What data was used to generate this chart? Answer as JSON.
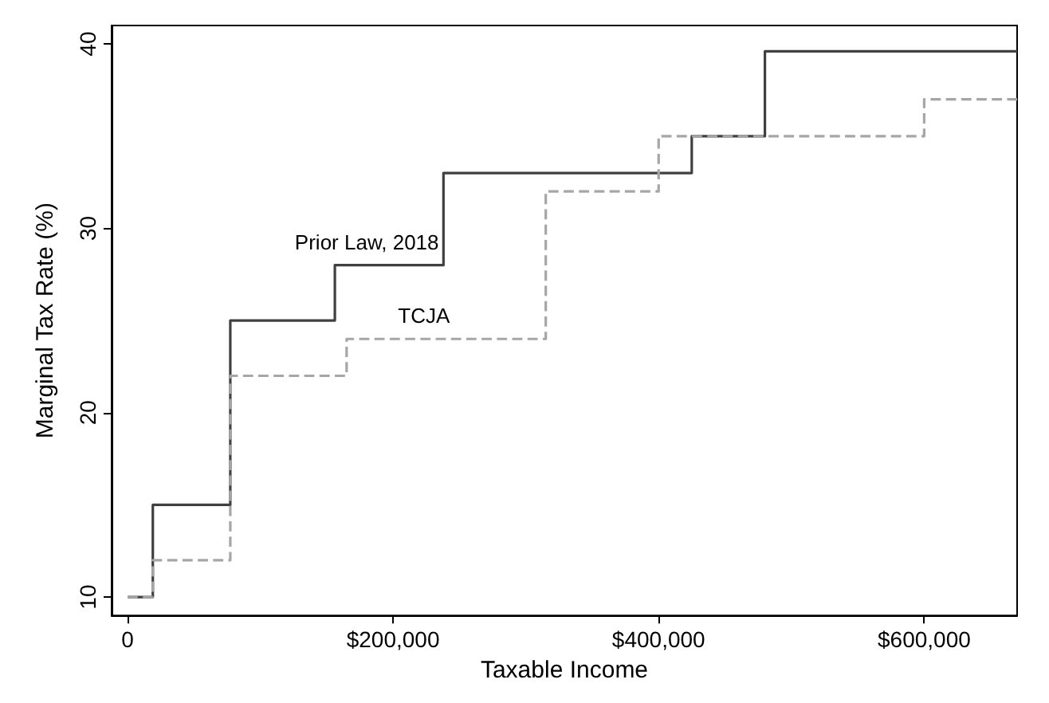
{
  "chart_data": {
    "type": "step",
    "xlabel": "Taxable Income",
    "ylabel": "Marginal Tax Rate (%)",
    "series": [
      {
        "name": "Prior Law, 2018",
        "color": "#404040",
        "line_style": "solid",
        "x": [
          0,
          19050,
          77400,
          156150,
          237950,
          424950,
          480050,
          670000
        ],
        "values": [
          10,
          15,
          25,
          28,
          33,
          35,
          39.6,
          39.6
        ]
      },
      {
        "name": "TCJA",
        "color": "#a6a6a6",
        "line_style": "dashed",
        "x": [
          0,
          19050,
          77400,
          165000,
          315000,
          400000,
          600000,
          670000
        ],
        "values": [
          10,
          12,
          22,
          24,
          32,
          35,
          37,
          37
        ]
      }
    ],
    "xlim": [
      -12000,
      670000
    ],
    "xticks": [
      0,
      {
        "value": 200000,
        "label": "$200,000"
      },
      {
        "value": 400000,
        "label": "$400,000"
      },
      {
        "value": 600000,
        "label": "$600,000"
      }
    ],
    "ylim": [
      9,
      41
    ],
    "yticks": [
      10,
      20,
      30,
      40
    ],
    "grid": false,
    "legend": false,
    "marker": "none"
  }
}
